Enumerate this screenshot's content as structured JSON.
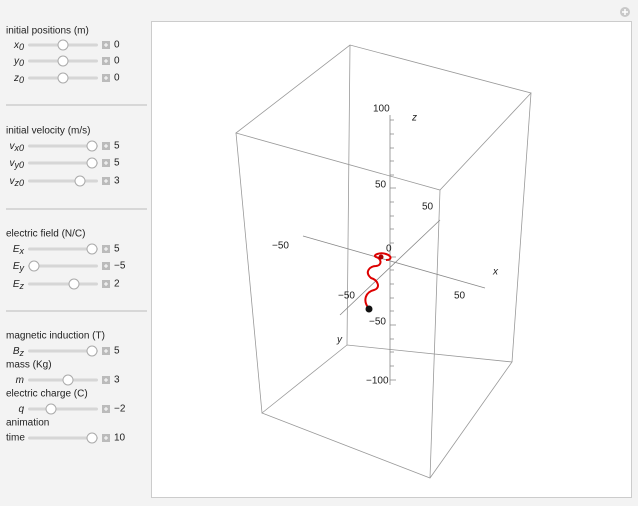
{
  "panel": {
    "groups": [
      [
        {
          "heading": "initial positions (m)"
        },
        {
          "symbol": "x",
          "sub": "0",
          "value": "0"
        },
        {
          "symbol": "y",
          "sub": "0",
          "value": "0"
        },
        {
          "symbol": "z",
          "sub": "0",
          "value": "0"
        }
      ],
      [
        {
          "heading": "initial velocity (m/s)"
        },
        {
          "symbol": "v",
          "sub": "x0",
          "value": "5"
        },
        {
          "symbol": "v",
          "sub": "y0",
          "value": "5"
        },
        {
          "symbol": "v",
          "sub": "z0",
          "value": "3"
        }
      ],
      [
        {
          "heading": "electric field (N/C)"
        },
        {
          "symbol": "E",
          "sub": "x",
          "value": "5"
        },
        {
          "symbol": "E",
          "sub": "y",
          "value": "−5"
        },
        {
          "symbol": "E",
          "sub": "z",
          "value": "2"
        }
      ],
      [
        {
          "heading": "magnetic induction (T)"
        },
        {
          "symbol": "B",
          "sub": "z",
          "value": "5"
        },
        {
          "heading": "mass (Kg)"
        },
        {
          "symbol": "m",
          "value": "3"
        },
        {
          "heading": "electric charge (C)"
        },
        {
          "symbol": "q",
          "value": "−2"
        },
        {
          "heading": "animation"
        },
        {
          "label": "time",
          "value": "10"
        }
      ]
    ]
  },
  "plot": {
    "z_ticks": [
      "100",
      "50",
      "0",
      "−50",
      "−100"
    ],
    "z_label": "z",
    "x_ticks": [
      "−50",
      "50"
    ],
    "x_label": "x",
    "y_ticks": [
      "50",
      "−50"
    ],
    "y_label": "y"
  }
}
